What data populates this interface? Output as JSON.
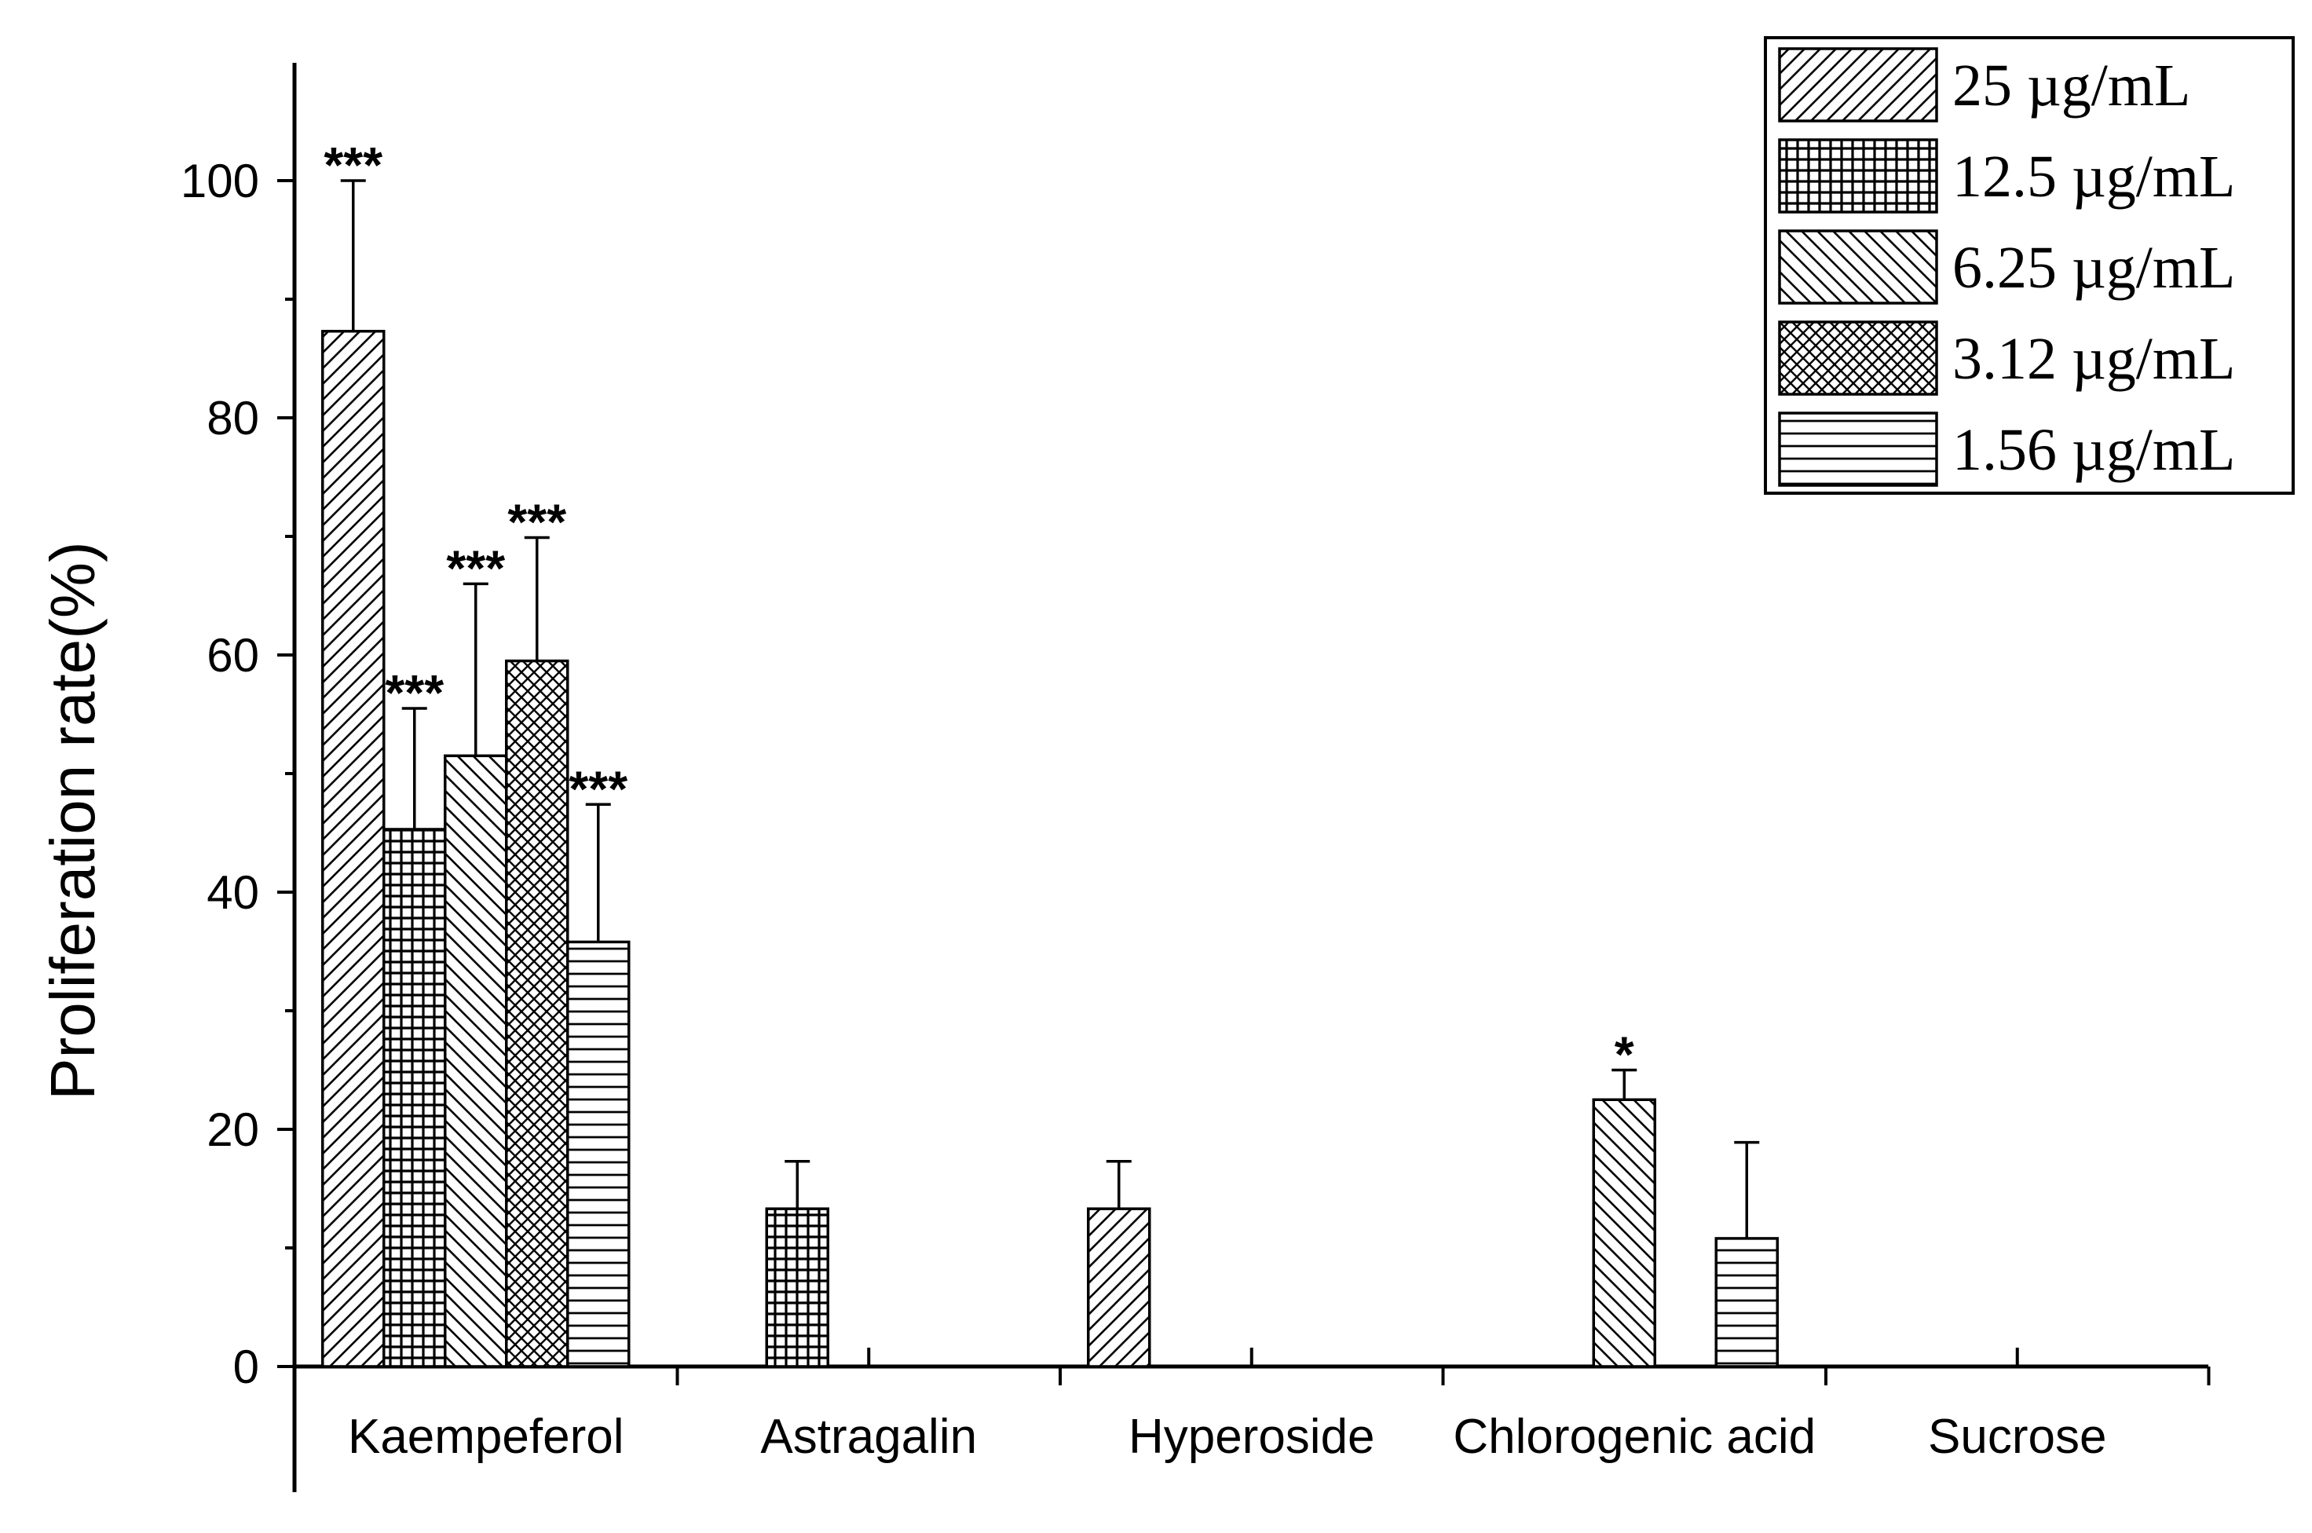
{
  "chart_data": {
    "type": "bar",
    "title": "",
    "xlabel": "",
    "ylabel": "Proliferation rate(%)",
    "ylim": [
      0,
      110
    ],
    "yticks": [
      0,
      20,
      40,
      60,
      80,
      100
    ],
    "categories": [
      "Kaempeferol",
      "Astragalin",
      "Hyperoside",
      "Chlorogenic acid",
      "Sucrose"
    ],
    "legend_position": "top-right",
    "grid": false,
    "series": [
      {
        "name": "25 µg/mL",
        "pattern": "diag-up",
        "values": [
          87.3,
          0,
          13.3,
          0,
          0
        ],
        "errors": [
          12.7,
          0,
          4.0,
          0,
          0
        ],
        "sig": [
          "***",
          "",
          "",
          "",
          ""
        ]
      },
      {
        "name": "12.5 µg/mL",
        "pattern": "grid",
        "values": [
          45.3,
          13.3,
          0,
          0,
          0
        ],
        "errors": [
          10.2,
          4.0,
          0,
          0,
          0
        ],
        "sig": [
          "***",
          "",
          "",
          "",
          ""
        ]
      },
      {
        "name": "6.25 µg/mL",
        "pattern": "diag-down",
        "values": [
          51.5,
          0,
          0,
          22.5,
          0
        ],
        "errors": [
          14.5,
          0,
          0,
          2.5,
          0
        ],
        "sig": [
          "***",
          "",
          "",
          "*",
          ""
        ]
      },
      {
        "name": "3.12 µg/mL",
        "pattern": "cross",
        "values": [
          59.5,
          0,
          0,
          0,
          0
        ],
        "errors": [
          10.4,
          0,
          0,
          0,
          0
        ],
        "sig": [
          "***",
          "",
          "",
          "",
          ""
        ]
      },
      {
        "name": "1.56 µg/mL",
        "pattern": "horiz",
        "values": [
          35.8,
          0,
          0,
          10.8,
          0
        ],
        "errors": [
          11.6,
          0,
          0,
          8.1,
          0
        ],
        "sig": [
          "***",
          "",
          "",
          "",
          ""
        ]
      }
    ]
  }
}
